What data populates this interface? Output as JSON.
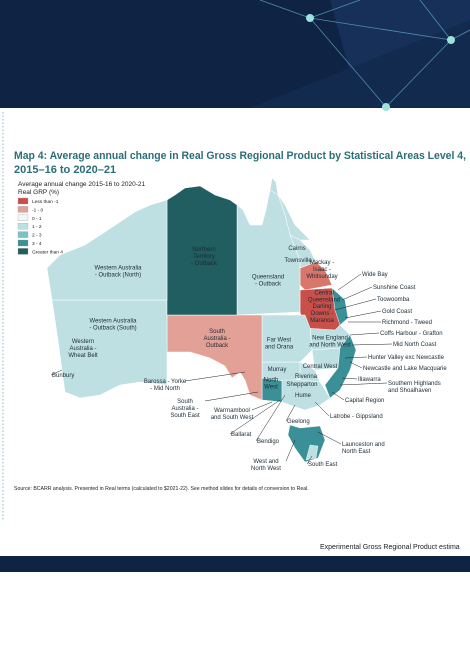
{
  "title": [
    "Map 4: Average annual change in Real Gross Regional Product by Statistical Areas Level 4,",
    "2015–16 to 2020–21"
  ],
  "legend": {
    "title": "Average annual change 2015-16 to 2020-21",
    "subtitle": "Real GRP (%)",
    "items": [
      {
        "label": "Less than -1",
        "color": "#c9504a"
      },
      {
        "label": "-1 - 0",
        "color": "#e3a096"
      },
      {
        "label": "0 - 1",
        "color": "#f3f7f7"
      },
      {
        "label": "1 - 2",
        "color": "#bfe0e3"
      },
      {
        "label": "2 - 3",
        "color": "#7cc1c6"
      },
      {
        "label": "3 - 4",
        "color": "#3b8f96"
      },
      {
        "label": "Greater than 4",
        "color": "#215e61"
      }
    ]
  },
  "regions": [
    {
      "label": [
        "Western Australia",
        "- Outback (North)"
      ],
      "color": "#bfe0e3"
    },
    {
      "label": [
        "Northern",
        "Territory",
        "- Outback"
      ],
      "color": "#215e61"
    },
    {
      "label": [
        "Queensland",
        "- Outback"
      ],
      "color": "#bfe0e3"
    },
    {
      "label": [
        "Western Australia",
        "- Outback (South)"
      ],
      "color": "#bfe0e3"
    },
    {
      "label": [
        "Western",
        "Australia -",
        "Wheat Belt"
      ],
      "color": "#e3a096"
    },
    {
      "label": [
        "South",
        "Australia -",
        "Outback"
      ],
      "color": "#e3a096"
    },
    {
      "label": [
        "Far West",
        "and Orana"
      ],
      "color": "#bfe0e3"
    },
    {
      "label": [
        "Cairns"
      ],
      "color": "#bfe0e3"
    },
    {
      "label": [
        "Townsville"
      ],
      "color": "#bfe0e3"
    },
    {
      "label": [
        "Mackay -",
        "Isaac -",
        "Whitsunday"
      ],
      "color": "#bfe0e3"
    },
    {
      "label": [
        "Central",
        "Queensland"
      ],
      "color": "#d9776c"
    },
    {
      "label": [
        "Darling",
        "Downs -",
        "Maranoa"
      ],
      "color": "#c9504a"
    },
    {
      "label": [
        "New England",
        "and North West"
      ],
      "color": "#bfe0e3"
    },
    {
      "label": [
        "Central West"
      ],
      "color": "#bfe0e3"
    },
    {
      "label": [
        "Murray"
      ],
      "color": "#bfe0e3"
    },
    {
      "label": [
        "Riverina"
      ],
      "color": "#bfe0e3"
    },
    {
      "label": [
        "North",
        "West"
      ],
      "color": "#3b8f96"
    },
    {
      "label": [
        "Shepparton"
      ],
      "color": "#3b8f96"
    },
    {
      "label": [
        "Hume"
      ],
      "color": "#c9504a"
    }
  ],
  "callouts": [
    [
      "Wide Bay"
    ],
    [
      "Sunshine Coast"
    ],
    [
      "Toowoomba"
    ],
    [
      "Gold Coast"
    ],
    [
      "Richmond - Tweed"
    ],
    [
      "Coffs Harbour - Grafton"
    ],
    [
      "Mid North Coast"
    ],
    [
      "Hunter Valley exc Newcastle"
    ],
    [
      "Newcastle and Lake Macquarie"
    ],
    [
      "Illawarra"
    ],
    [
      "Southern Highlands",
      "and Shoalhaven"
    ],
    [
      "Capital Region"
    ],
    [
      "Latrobe - Gippsland"
    ],
    [
      "Launceston and",
      "North East"
    ],
    [
      "South East"
    ],
    [
      "West and",
      "North West"
    ],
    [
      "Geelong"
    ],
    [
      "Bendigo"
    ],
    [
      "Ballarat"
    ],
    [
      "Warrnambool",
      "and South West"
    ],
    [
      "South",
      "Australia -",
      "South East"
    ],
    [
      "Barossa - Yorke",
      "- Mid North"
    ],
    [
      "Bunbury"
    ]
  ],
  "source": "Source: BCARR analysis. Presented in Real terms (calculated to $2021-22). See method slides for details of conversion to Real.",
  "footer": "Experimental Gross Regional Product estima"
}
